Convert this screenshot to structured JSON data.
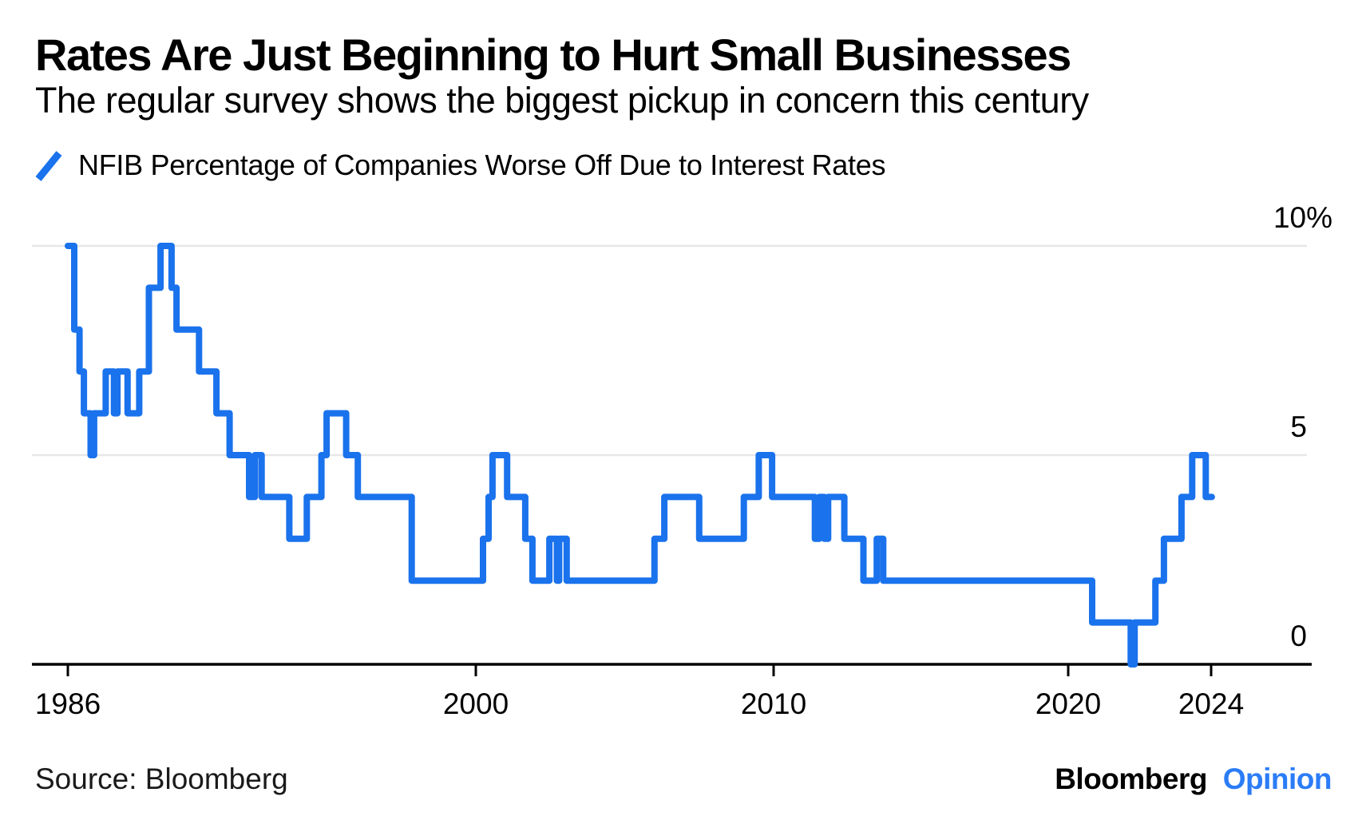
{
  "header": {
    "title": "Rates Are Just Beginning to Hurt Small Businesses",
    "subtitle": "The regular survey shows the biggest pickup in concern this century"
  },
  "legend": {
    "marker_icon": "blue-slash-icon",
    "label": "NFIB Percentage of Companies Worse Off Due to Interest Rates"
  },
  "footer": {
    "source": "Source: Bloomberg",
    "brand": "Bloomberg",
    "brand_edition": "Opinion"
  },
  "colors": {
    "series_blue": "#1a72ec",
    "brand_edition_blue": "#2b7cf7",
    "gridline_gray": "#e7e7e7",
    "axis_black": "#000000",
    "text_black": "#000000"
  },
  "chart_data": {
    "type": "line",
    "subtype": "step",
    "title": "Rates Are Just Beginning to Hurt Small Businesses",
    "legend_entries": [
      "NFIB Percentage of Companies Worse Off Due to Interest Rates"
    ],
    "xlabel": "",
    "ylabel": "",
    "y_unit": "%",
    "ylim": [
      -1,
      11
    ],
    "xlim": [
      1985.9,
      2025.2
    ],
    "grid": "horizontal-only",
    "legend_position": "top-left",
    "y_axis": {
      "ticks": [
        {
          "label": "10%",
          "value": 10,
          "gridline": true
        },
        {
          "label": "5",
          "value": 5,
          "gridline": true
        },
        {
          "label": "0",
          "value": 0,
          "gridline": false
        }
      ]
    },
    "x_axis": {
      "ticks": [
        {
          "label": "1986",
          "year": 1986
        },
        {
          "label": "2000",
          "year": 2000
        },
        {
          "label": "2010",
          "year": 2010
        },
        {
          "label": "2020",
          "year": 2020
        },
        {
          "label": "2024",
          "year": 2024
        }
      ]
    },
    "series": [
      {
        "name": "NFIB Percentage of Companies Worse Off Due to Interest Rates",
        "color": "#1a72ec",
        "end_year": 2024.02,
        "points": [
          [
            1986.0,
            10
          ],
          [
            1986.22,
            8
          ],
          [
            1986.4,
            7
          ],
          [
            1986.55,
            6
          ],
          [
            1986.78,
            5
          ],
          [
            1986.9,
            6
          ],
          [
            1987.3,
            7
          ],
          [
            1987.58,
            6
          ],
          [
            1987.7,
            7
          ],
          [
            1988.05,
            6
          ],
          [
            1988.45,
            7
          ],
          [
            1988.78,
            9
          ],
          [
            1989.18,
            10
          ],
          [
            1989.56,
            9
          ],
          [
            1989.73,
            8
          ],
          [
            1990.5,
            7
          ],
          [
            1991.1,
            6
          ],
          [
            1991.55,
            5
          ],
          [
            1992.22,
            4
          ],
          [
            1992.42,
            5
          ],
          [
            1992.65,
            4
          ],
          [
            1993.6,
            3
          ],
          [
            1994.2,
            4
          ],
          [
            1994.7,
            5
          ],
          [
            1994.88,
            6
          ],
          [
            1995.55,
            5
          ],
          [
            1995.95,
            4
          ],
          [
            1997.8,
            2
          ],
          [
            2000.24,
            3
          ],
          [
            2000.43,
            4
          ],
          [
            2000.56,
            5
          ],
          [
            2001.05,
            4
          ],
          [
            2001.66,
            3
          ],
          [
            2001.9,
            2
          ],
          [
            2002.47,
            3
          ],
          [
            2002.72,
            2
          ],
          [
            2002.8,
            3
          ],
          [
            2003.05,
            2
          ],
          [
            2006.0,
            3
          ],
          [
            2006.33,
            4
          ],
          [
            2007.5,
            3
          ],
          [
            2009.0,
            4
          ],
          [
            2009.5,
            5
          ],
          [
            2009.95,
            4
          ],
          [
            2011.4,
            3
          ],
          [
            2011.55,
            4
          ],
          [
            2011.72,
            3
          ],
          [
            2011.85,
            4
          ],
          [
            2012.4,
            3
          ],
          [
            2013.05,
            2
          ],
          [
            2013.5,
            3
          ],
          [
            2013.72,
            2
          ],
          [
            2020.67,
            1
          ],
          [
            2021.75,
            0
          ],
          [
            2021.86,
            1
          ],
          [
            2022.44,
            2
          ],
          [
            2022.68,
            3
          ],
          [
            2023.17,
            4
          ],
          [
            2023.47,
            5
          ],
          [
            2023.85,
            4
          ]
        ]
      }
    ]
  }
}
